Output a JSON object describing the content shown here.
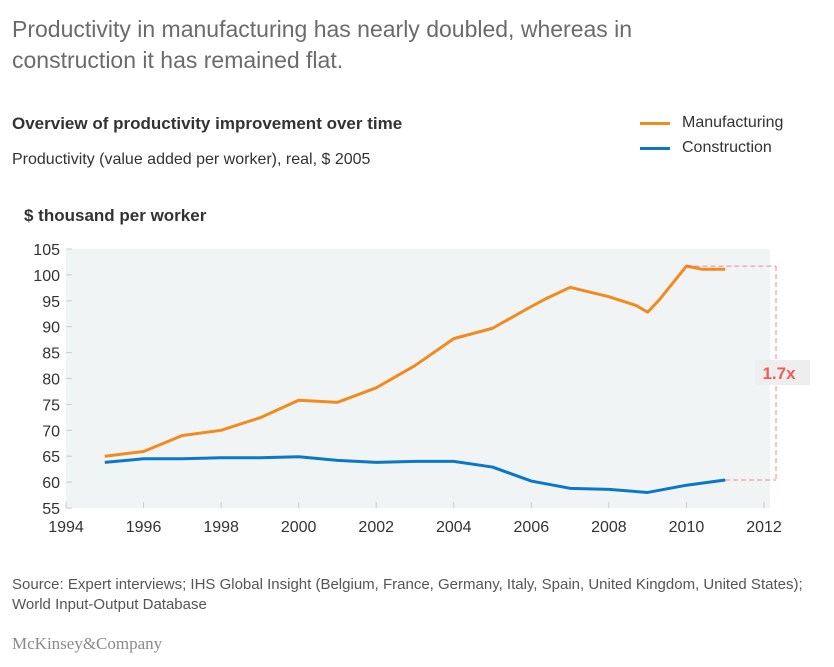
{
  "headline": "Productivity in manufacturing has nearly doubled, whereas in construction it has remained flat.",
  "source": "Source: Expert interviews; IHS Global Insight (Belgium, France, Germany, Italy, Spain, United Kingdom, United States); World Input-Output Database",
  "logo": "McKinsey&Company",
  "chart_data": {
    "type": "line",
    "title": "Overview of productivity improvement over time",
    "subtitle": "Productivity (value added per worker), real, $ 2005",
    "ylabel": "$ thousand per worker",
    "xlim": [
      1994,
      2012
    ],
    "ylim": [
      55,
      105
    ],
    "xticks": [
      1994,
      1996,
      1998,
      2000,
      2002,
      2004,
      2006,
      2008,
      2010,
      2012
    ],
    "yticks": [
      55,
      60,
      65,
      70,
      75,
      80,
      85,
      90,
      95,
      100,
      105
    ],
    "grid": false,
    "legend": "top-right",
    "background": "#f0f4f5",
    "series": [
      {
        "name": "Manufacturing",
        "color": "#f28a1e",
        "x": [
          1995,
          1996,
          1997,
          1998,
          1998.7,
          1999,
          2000,
          2001,
          2002,
          2003,
          2004,
          2005,
          2006,
          2006.4,
          2007,
          2008,
          2008.7,
          2009,
          2009.3,
          2010,
          2010.4,
          2011
        ],
        "y": [
          65.0,
          65.9,
          69.0,
          70.0,
          71.7,
          72.4,
          75.8,
          75.4,
          78.2,
          82.5,
          87.7,
          89.7,
          93.9,
          95.5,
          97.6,
          95.8,
          94.1,
          92.8,
          95.2,
          101.7,
          101.1,
          101.1
        ]
      },
      {
        "name": "Construction",
        "color": "#0a78c8",
        "x": [
          1995,
          1996,
          1997,
          1998,
          1999,
          2000,
          2001,
          2002,
          2003,
          2004,
          2005,
          2006,
          2007,
          2008,
          2009,
          2010,
          2011
        ],
        "y": [
          63.8,
          64.5,
          64.5,
          64.7,
          64.7,
          64.9,
          64.2,
          63.8,
          64.0,
          64.0,
          62.9,
          60.2,
          58.8,
          58.6,
          58.0,
          59.4,
          60.4
        ]
      }
    ],
    "annotation": {
      "label": "1.7x",
      "color": "#f05a5a"
    }
  }
}
